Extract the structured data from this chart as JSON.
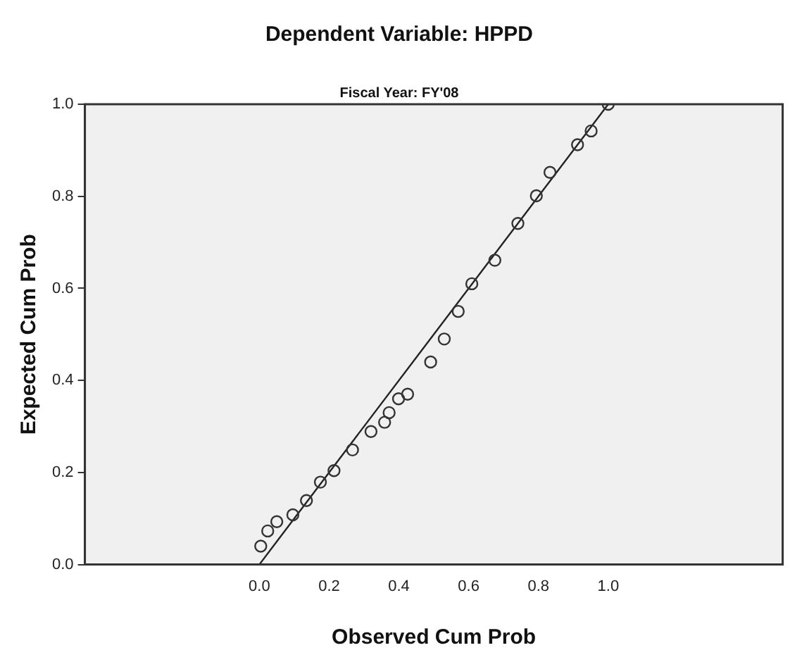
{
  "chart_data": {
    "type": "scatter",
    "title": "Dependent Variable: HPPD",
    "subtitle": "Fiscal Year: FY'08",
    "xlabel": "Observed Cum Prob",
    "ylabel": "Expected Cum Prob",
    "xlim": [
      -0.5,
      1.5
    ],
    "xticks": [
      {
        "value": 0,
        "label": "0.0"
      },
      0.2,
      0.4,
      0.6,
      0.8,
      {
        "value": 1,
        "label": "1.0"
      }
    ],
    "ylim": [
      0,
      1
    ],
    "yticks": [
      {
        "value": 0,
        "label": "0.0"
      },
      0.2,
      0.4,
      0.6,
      0.8,
      {
        "value": 1,
        "label": "1.0"
      }
    ],
    "grid": false,
    "legend": false,
    "marker": "circle",
    "series": [
      {
        "color": "#333333",
        "x": [
          0.004,
          0.024,
          0.05,
          0.096,
          0.135,
          0.175,
          0.214,
          0.267,
          0.32,
          0.359,
          0.372,
          0.399,
          0.425,
          0.491,
          0.53,
          0.57,
          0.609,
          0.675,
          0.741,
          0.794,
          0.833,
          0.912,
          0.951,
          1.0
        ],
        "values": [
          0.04,
          0.073,
          0.093,
          0.108,
          0.139,
          0.179,
          0.204,
          0.249,
          0.289,
          0.309,
          0.33,
          0.36,
          0.37,
          0.44,
          0.49,
          0.55,
          0.61,
          0.661,
          0.741,
          0.801,
          0.852,
          0.912,
          0.942,
          1.0
        ]
      },
      {
        "type": "line",
        "color": "#222222",
        "x": [
          0,
          1
        ],
        "values": [
          0,
          1
        ],
        "marker": "none"
      }
    ]
  }
}
